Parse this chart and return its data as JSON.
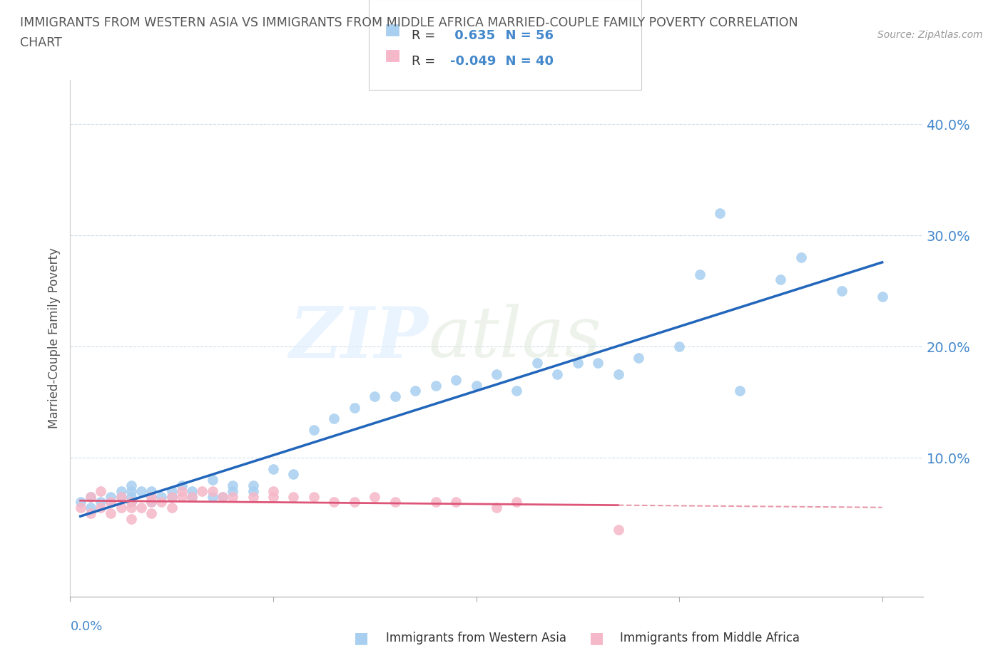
{
  "title_line1": "IMMIGRANTS FROM WESTERN ASIA VS IMMIGRANTS FROM MIDDLE AFRICA MARRIED-COUPLE FAMILY POVERTY CORRELATION",
  "title_line2": "CHART",
  "source_text": "Source: ZipAtlas.com",
  "ylabel": "Married-Couple Family Poverty",
  "r_western": 0.635,
  "n_western": 56,
  "r_middle": -0.049,
  "n_middle": 40,
  "color_western": "#a8cff0",
  "color_middle": "#f5b8c8",
  "color_western_line": "#2266bb",
  "color_middle_line": "#dd5577",
  "color_middle_line_dash": "#e899aa",
  "xlim": [
    0.0,
    0.42
  ],
  "ylim": [
    -0.025,
    0.44
  ],
  "yticks": [
    0.0,
    0.1,
    0.2,
    0.3,
    0.4
  ],
  "ytick_labels": [
    "",
    "10.0%",
    "20.0%",
    "30.0%",
    "40.0%"
  ],
  "background_color": "#ffffff",
  "grid_color": "#d0dde8",
  "title_color": "#555555",
  "tick_color": "#4488cc",
  "axis_label_color": "#555555",
  "western_asia_x": [
    0.005,
    0.01,
    0.01,
    0.015,
    0.02,
    0.02,
    0.025,
    0.025,
    0.03,
    0.03,
    0.03,
    0.03,
    0.035,
    0.04,
    0.04,
    0.04,
    0.045,
    0.05,
    0.05,
    0.055,
    0.06,
    0.06,
    0.07,
    0.07,
    0.075,
    0.08,
    0.08,
    0.09,
    0.09,
    0.1,
    0.11,
    0.12,
    0.13,
    0.14,
    0.15,
    0.16,
    0.17,
    0.18,
    0.19,
    0.2,
    0.21,
    0.22,
    0.23,
    0.24,
    0.25,
    0.26,
    0.27,
    0.28,
    0.3,
    0.31,
    0.32,
    0.33,
    0.35,
    0.36,
    0.38,
    0.4
  ],
  "western_asia_y": [
    0.06,
    0.055,
    0.065,
    0.06,
    0.06,
    0.065,
    0.065,
    0.07,
    0.06,
    0.065,
    0.07,
    0.075,
    0.07,
    0.06,
    0.065,
    0.07,
    0.065,
    0.065,
    0.07,
    0.075,
    0.065,
    0.07,
    0.065,
    0.08,
    0.065,
    0.07,
    0.075,
    0.07,
    0.075,
    0.09,
    0.085,
    0.125,
    0.135,
    0.145,
    0.155,
    0.155,
    0.16,
    0.165,
    0.17,
    0.165,
    0.175,
    0.16,
    0.185,
    0.175,
    0.185,
    0.185,
    0.175,
    0.19,
    0.2,
    0.265,
    0.32,
    0.16,
    0.26,
    0.28,
    0.25,
    0.245
  ],
  "middle_africa_x": [
    0.005,
    0.01,
    0.01,
    0.015,
    0.015,
    0.02,
    0.02,
    0.025,
    0.025,
    0.03,
    0.03,
    0.03,
    0.035,
    0.04,
    0.04,
    0.04,
    0.045,
    0.05,
    0.05,
    0.055,
    0.055,
    0.06,
    0.065,
    0.07,
    0.075,
    0.08,
    0.09,
    0.1,
    0.1,
    0.11,
    0.12,
    0.13,
    0.14,
    0.15,
    0.16,
    0.18,
    0.19,
    0.21,
    0.22,
    0.27
  ],
  "middle_africa_y": [
    0.055,
    0.05,
    0.065,
    0.055,
    0.07,
    0.05,
    0.06,
    0.055,
    0.065,
    0.045,
    0.055,
    0.06,
    0.055,
    0.05,
    0.06,
    0.065,
    0.06,
    0.055,
    0.065,
    0.065,
    0.07,
    0.065,
    0.07,
    0.07,
    0.065,
    0.065,
    0.065,
    0.065,
    0.07,
    0.065,
    0.065,
    0.06,
    0.06,
    0.065,
    0.06,
    0.06,
    0.06,
    0.055,
    0.06,
    0.035
  ]
}
